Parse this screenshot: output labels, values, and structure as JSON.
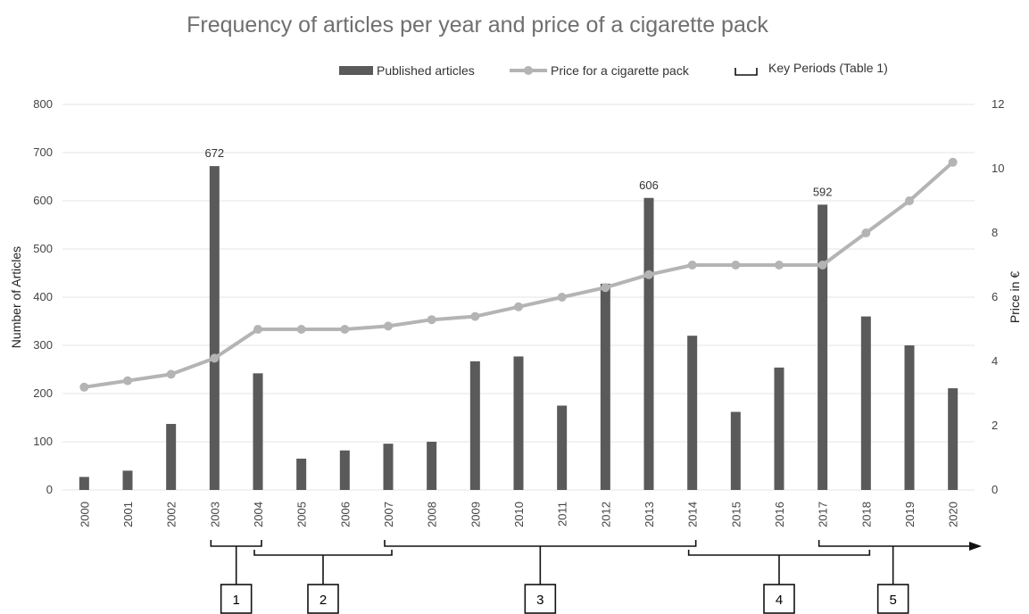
{
  "chart_data": {
    "type": "bar",
    "title": "Frequency of articles per year and price of a cigarette pack",
    "categories": [
      "2000",
      "2001",
      "2002",
      "2003",
      "2004",
      "2005",
      "2006",
      "2007",
      "2008",
      "2009",
      "2010",
      "2011",
      "2012",
      "2013",
      "2014",
      "2015",
      "2016",
      "2017",
      "2018",
      "2019",
      "2020"
    ],
    "series": [
      {
        "name": "Published articles",
        "chart_type": "bar",
        "axis": "left",
        "color": "#5a5a5a",
        "values": [
          27,
          40,
          137,
          672,
          242,
          65,
          82,
          96,
          100,
          267,
          277,
          175,
          428,
          606,
          320,
          162,
          254,
          592,
          360,
          300,
          211
        ]
      },
      {
        "name": "Price for a cigarette pack",
        "chart_type": "line",
        "axis": "right",
        "color": "#b4b4b4",
        "values": [
          3.2,
          3.4,
          3.6,
          4.1,
          5.0,
          5.0,
          5.0,
          5.1,
          5.3,
          5.4,
          5.7,
          6.0,
          6.3,
          6.7,
          7.0,
          7.0,
          7.0,
          7.0,
          8.0,
          9.0,
          10.2
        ]
      }
    ],
    "data_labels": [
      {
        "category": "2003",
        "text": "672"
      },
      {
        "category": "2013",
        "text": "606"
      },
      {
        "category": "2017",
        "text": "592"
      }
    ],
    "ylabel": "Number of Articles",
    "ylim": [
      0,
      800
    ],
    "yticks": [
      "0",
      "100",
      "200",
      "300",
      "400",
      "500",
      "600",
      "700",
      "800"
    ],
    "y2label": "Price in €",
    "y2lim": [
      0,
      12
    ],
    "y2ticks": [
      "0",
      "2",
      "4",
      "6",
      "8",
      "10",
      "12"
    ],
    "grid": true,
    "legend_position": "top-right",
    "legend_extra": "Key Periods (Table 1)",
    "key_periods": [
      {
        "label": "1",
        "start": "2003",
        "end": "2004"
      },
      {
        "label": "2",
        "start": "2004",
        "end": "2007"
      },
      {
        "label": "3",
        "start": "2007",
        "end": "2014"
      },
      {
        "label": "4",
        "start": "2014",
        "end": "2018"
      },
      {
        "label": "5",
        "start": "2017",
        "end": "2020",
        "open_ended": true
      }
    ]
  }
}
